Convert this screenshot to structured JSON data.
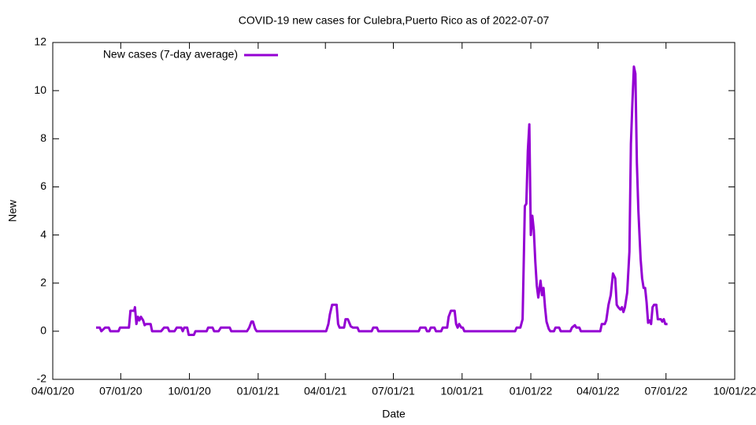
{
  "chart_data": {
    "type": "line",
    "title": "COVID-19 new cases for Culebra,Puerto Rico as of 2022-07-07",
    "x_label": "Date",
    "y_label": "New",
    "xlim": [
      "2020-04-01",
      "2022-10-01"
    ],
    "xticks": [
      {
        "value": "2020-04-01",
        "label": "04/01/20"
      },
      {
        "value": "2020-07-01",
        "label": "07/01/20"
      },
      {
        "value": "2020-10-01",
        "label": "10/01/20"
      },
      {
        "value": "2021-01-01",
        "label": "01/01/21"
      },
      {
        "value": "2021-04-01",
        "label": "04/01/21"
      },
      {
        "value": "2021-07-01",
        "label": "07/01/21"
      },
      {
        "value": "2021-10-01",
        "label": "10/01/21"
      },
      {
        "value": "2022-01-01",
        "label": "01/01/22"
      },
      {
        "value": "2022-04-01",
        "label": "04/01/22"
      },
      {
        "value": "2022-07-01",
        "label": "07/01/22"
      },
      {
        "value": "2022-10-01",
        "label": "10/01/22"
      }
    ],
    "ylim": [
      -2,
      12
    ],
    "yticks": [
      -2,
      0,
      2,
      4,
      6,
      8,
      10,
      12
    ],
    "grid": false,
    "legend": "top left",
    "x": [
      "2020-05-29",
      "2020-06-03",
      "2020-06-05",
      "2020-06-10",
      "2020-06-15",
      "2020-06-17",
      "2020-06-28",
      "2020-06-30",
      "2020-07-12",
      "2020-07-14",
      "2020-07-19",
      "2020-07-20",
      "2020-07-22",
      "2020-07-24",
      "2020-07-26",
      "2020-07-28",
      "2020-07-31",
      "2020-08-02",
      "2020-08-04",
      "2020-08-10",
      "2020-08-12",
      "2020-08-24",
      "2020-08-28",
      "2020-09-02",
      "2020-09-04",
      "2020-09-11",
      "2020-09-14",
      "2020-09-20",
      "2020-09-22",
      "2020-09-24",
      "2020-09-28",
      "2020-09-30",
      "2020-10-07",
      "2020-10-09",
      "2020-10-24",
      "2020-10-26",
      "2020-11-01",
      "2020-11-03",
      "2020-11-09",
      "2020-11-12",
      "2020-11-24",
      "2020-11-26",
      "2020-12-17",
      "2020-12-20",
      "2020-12-23",
      "2020-12-25",
      "2020-12-28",
      "2020-12-30",
      "2021-04-02",
      "2021-04-05",
      "2021-04-07",
      "2021-04-10",
      "2021-04-16",
      "2021-04-18",
      "2021-04-20",
      "2021-04-26",
      "2021-04-28",
      "2021-05-01",
      "2021-05-05",
      "2021-05-08",
      "2021-05-14",
      "2021-05-16",
      "2021-06-02",
      "2021-06-04",
      "2021-06-09",
      "2021-06-11",
      "2021-08-04",
      "2021-08-06",
      "2021-08-13",
      "2021-08-15",
      "2021-08-18",
      "2021-08-20",
      "2021-08-25",
      "2021-08-27",
      "2021-09-03",
      "2021-09-05",
      "2021-09-11",
      "2021-09-13",
      "2021-09-16",
      "2021-09-21",
      "2021-09-23",
      "2021-09-25",
      "2021-09-27",
      "2021-09-30",
      "2021-10-02",
      "2021-10-04",
      "2021-12-11",
      "2021-12-13",
      "2021-12-18",
      "2021-12-21",
      "2021-12-24",
      "2021-12-26",
      "2021-12-28",
      "2021-12-30",
      "2022-01-01",
      "2022-01-03",
      "2022-01-05",
      "2022-01-07",
      "2022-01-09",
      "2022-01-11",
      "2022-01-14",
      "2022-01-16",
      "2022-01-18",
      "2022-01-20",
      "2022-01-22",
      "2022-01-25",
      "2022-01-27",
      "2022-02-01",
      "2022-02-03",
      "2022-02-08",
      "2022-02-10",
      "2022-02-23",
      "2022-02-25",
      "2022-03-01",
      "2022-03-03",
      "2022-03-07",
      "2022-03-09",
      "2022-04-04",
      "2022-04-06",
      "2022-04-10",
      "2022-04-12",
      "2022-04-15",
      "2022-04-18",
      "2022-04-21",
      "2022-04-24",
      "2022-04-26",
      "2022-04-28",
      "2022-05-01",
      "2022-05-03",
      "2022-05-05",
      "2022-05-07",
      "2022-05-10",
      "2022-05-13",
      "2022-05-15",
      "2022-05-17",
      "2022-05-19",
      "2022-05-21",
      "2022-05-23",
      "2022-05-25",
      "2022-05-28",
      "2022-05-30",
      "2022-06-01",
      "2022-06-03",
      "2022-06-05",
      "2022-06-07",
      "2022-06-09",
      "2022-06-11",
      "2022-06-13",
      "2022-06-15",
      "2022-06-18",
      "2022-06-20",
      "2022-06-24",
      "2022-06-26",
      "2022-06-28",
      "2022-06-30",
      "2022-07-03"
    ],
    "series": [
      {
        "name": "New cases (7-day average)",
        "color": "#9400d3",
        "values": [
          0.15,
          0.15,
          0,
          0.15,
          0.15,
          0,
          0,
          0.15,
          0.15,
          0.85,
          0.85,
          1.0,
          0.3,
          0.6,
          0.45,
          0.6,
          0.45,
          0.25,
          0.3,
          0.3,
          0,
          0,
          0.15,
          0.15,
          0,
          0,
          0.15,
          0.15,
          0,
          0.15,
          0.15,
          -0.15,
          -0.15,
          0,
          0,
          0.15,
          0.15,
          0,
          0,
          0.15,
          0.15,
          0,
          0,
          0.15,
          0.4,
          0.4,
          0.1,
          0,
          0,
          0.3,
          0.7,
          1.1,
          1.1,
          0.3,
          0.15,
          0.15,
          0.5,
          0.5,
          0.2,
          0.15,
          0.15,
          0,
          0,
          0.15,
          0.15,
          0,
          0,
          0.15,
          0.15,
          0,
          0,
          0.15,
          0.15,
          0,
          0,
          0.15,
          0.15,
          0.6,
          0.85,
          0.85,
          0.3,
          0.15,
          0.3,
          0.15,
          0.15,
          0,
          0,
          0.15,
          0.15,
          0.5,
          5.2,
          5.3,
          7.5,
          8.6,
          4.0,
          4.8,
          4.2,
          2.9,
          1.9,
          1.4,
          2.1,
          1.5,
          1.8,
          1.0,
          0.4,
          0.1,
          0,
          0,
          0.15,
          0.15,
          0,
          0,
          0.15,
          0.25,
          0.15,
          0.15,
          0,
          0,
          0.3,
          0.3,
          0.45,
          1.1,
          1.5,
          2.4,
          2.2,
          1.1,
          1.0,
          0.9,
          1.0,
          0.8,
          1.0,
          1.6,
          3.3,
          7.8,
          9.5,
          11.0,
          10.7,
          7.0,
          5.0,
          3.0,
          2.2,
          1.8,
          1.8,
          1.2,
          0.35,
          0.45,
          0.3,
          1.0,
          1.1,
          1.1,
          0.5,
          0.5,
          0.4,
          0.5,
          0.3,
          0.3
        ]
      }
    ]
  }
}
